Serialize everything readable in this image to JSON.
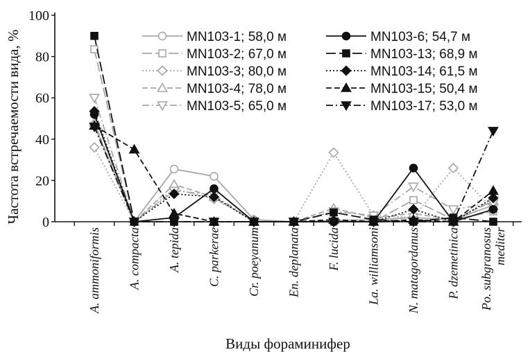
{
  "chart_data": {
    "type": "line",
    "title": "",
    "xlabel": "Виды фораминифер",
    "ylabel": "Частота встречаемости вида, %",
    "ylim": [
      0,
      100
    ],
    "yticks": [
      0,
      20,
      40,
      60,
      80,
      100
    ],
    "grid": false,
    "legend_position": "top-right, two columns",
    "categories": [
      "A. ammoniformis",
      "A. compacta",
      "A. tepida",
      "C. parkerae",
      "Cr. poeyanum",
      "En. deplanata",
      "F. lucida",
      "La. williamsoni",
      "N. matagordanus",
      "P. dzemetinica",
      [
        "Po. subgranosus",
        "mediter"
      ]
    ],
    "series": [
      {
        "name": "MN103-1; 58,0 м",
        "color": "#a6a6a6",
        "dash": "solid",
        "marker": "circle-open",
        "values": [
          47,
          0,
          25.5,
          22,
          1,
          0,
          0.5,
          1,
          2,
          1,
          8
        ]
      },
      {
        "name": "MN103-2; 67,0 м",
        "color": "#a6a6a6",
        "dash": "longdash",
        "marker": "square-open",
        "values": [
          83.5,
          0,
          0,
          0,
          0,
          0,
          0,
          0,
          10.5,
          1,
          5
        ]
      },
      {
        "name": "MN103-3; 80,0 м",
        "color": "#a6a6a6",
        "dash": "dot",
        "marker": "diamond-open",
        "values": [
          36,
          0,
          16,
          11,
          1,
          0,
          33.5,
          3,
          2,
          26,
          6
        ]
      },
      {
        "name": "MN103-4; 78,0 м",
        "color": "#a6a6a6",
        "dash": "dash",
        "marker": "triangle-open",
        "values": [
          48,
          0,
          18,
          12,
          0,
          0,
          6.5,
          2,
          4,
          1,
          10
        ]
      },
      {
        "name": "MN103-5; 65,0 м",
        "color": "#a6a6a6",
        "dash": "dashdot",
        "marker": "triangledown-open",
        "values": [
          60,
          0,
          15,
          13,
          0,
          0,
          5,
          3,
          17,
          6,
          9
        ]
      },
      {
        "name": "MN103-6; 54,7 м",
        "color": "#111111",
        "dash": "solid",
        "marker": "circle-filled",
        "values": [
          52,
          0,
          2,
          16,
          0,
          0,
          0,
          0,
          26,
          0,
          6
        ]
      },
      {
        "name": "MN103-13; 68,9 м",
        "color": "#111111",
        "dash": "longdash",
        "marker": "square-filled",
        "values": [
          90,
          0,
          0,
          0,
          0,
          0,
          4.5,
          1,
          0,
          2,
          0
        ]
      },
      {
        "name": "MN103-14; 61,5 м",
        "color": "#111111",
        "dash": "dot",
        "marker": "diamond-filled",
        "values": [
          53.5,
          0,
          13.5,
          12,
          0,
          0,
          0,
          0,
          6,
          0,
          11.5
        ]
      },
      {
        "name": "MN103-15; 50,4 м",
        "color": "#111111",
        "dash": "dash",
        "marker": "triangle-filled",
        "values": [
          46.5,
          35,
          4,
          0,
          0,
          0,
          1,
          0,
          1,
          0,
          15
        ]
      },
      {
        "name": "MN103-17; 53,0 м",
        "color": "#111111",
        "dash": "dashdot",
        "marker": "triangledown-filled",
        "values": [
          46,
          0,
          0,
          0,
          0,
          0,
          0,
          0,
          0,
          0,
          44
        ]
      }
    ]
  }
}
